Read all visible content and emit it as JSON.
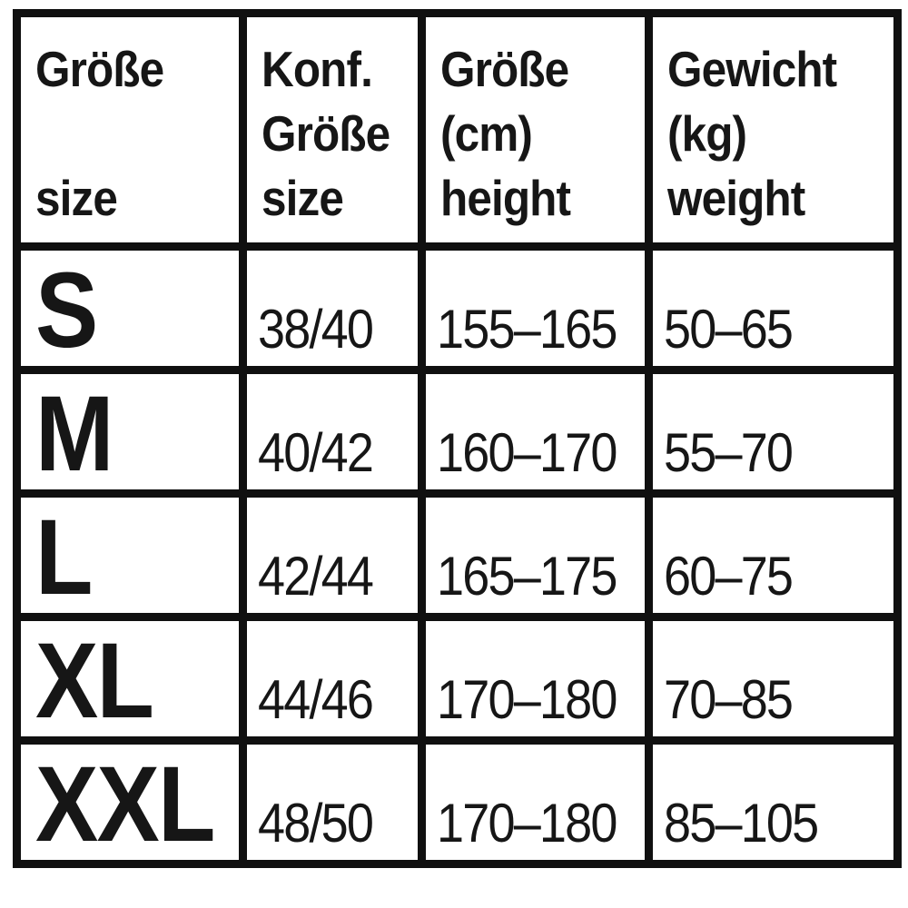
{
  "colors": {
    "border": "#101010",
    "text": "#161616",
    "background": "#ffffff"
  },
  "chart_data": {
    "type": "table",
    "columns": [
      "Größe / size",
      "Konf. Größe / size",
      "Größe (cm) / height",
      "Gewicht (kg) / weight"
    ],
    "rows": [
      [
        "S",
        "38/40",
        "155–165",
        "50–65"
      ],
      [
        "M",
        "40/42",
        "160–170",
        "55–70"
      ],
      [
        "L",
        "42/44",
        "165–175",
        "60–75"
      ],
      [
        "XL",
        "44/46",
        "170–180",
        "70–85"
      ],
      [
        "XXL",
        "48/50",
        "170–180",
        "85–105"
      ]
    ]
  },
  "table": {
    "header": {
      "col1": {
        "line1": "Größe",
        "line2": "",
        "line3": "size"
      },
      "col2": {
        "line1": "Konf.",
        "line2": "Größe",
        "line3": "size"
      },
      "col3": {
        "line1": "Größe",
        "line2": "(cm)",
        "line3": "height"
      },
      "col4": {
        "line1": "Gewicht",
        "line2": "(kg)",
        "line3": "weight"
      }
    },
    "rows": [
      {
        "size": "S",
        "konf_size": "38/40",
        "height_cm": "155–165",
        "weight_kg": "50–65"
      },
      {
        "size": "M",
        "konf_size": "40/42",
        "height_cm": "160–170",
        "weight_kg": "55–70"
      },
      {
        "size": "L",
        "konf_size": "42/44",
        "height_cm": "165–175",
        "weight_kg": "60–75"
      },
      {
        "size": "XL",
        "konf_size": "44/46",
        "height_cm": "170–180",
        "weight_kg": "70–85"
      },
      {
        "size": "XXL",
        "konf_size": "48/50",
        "height_cm": "170–180",
        "weight_kg": "85–105"
      }
    ]
  }
}
